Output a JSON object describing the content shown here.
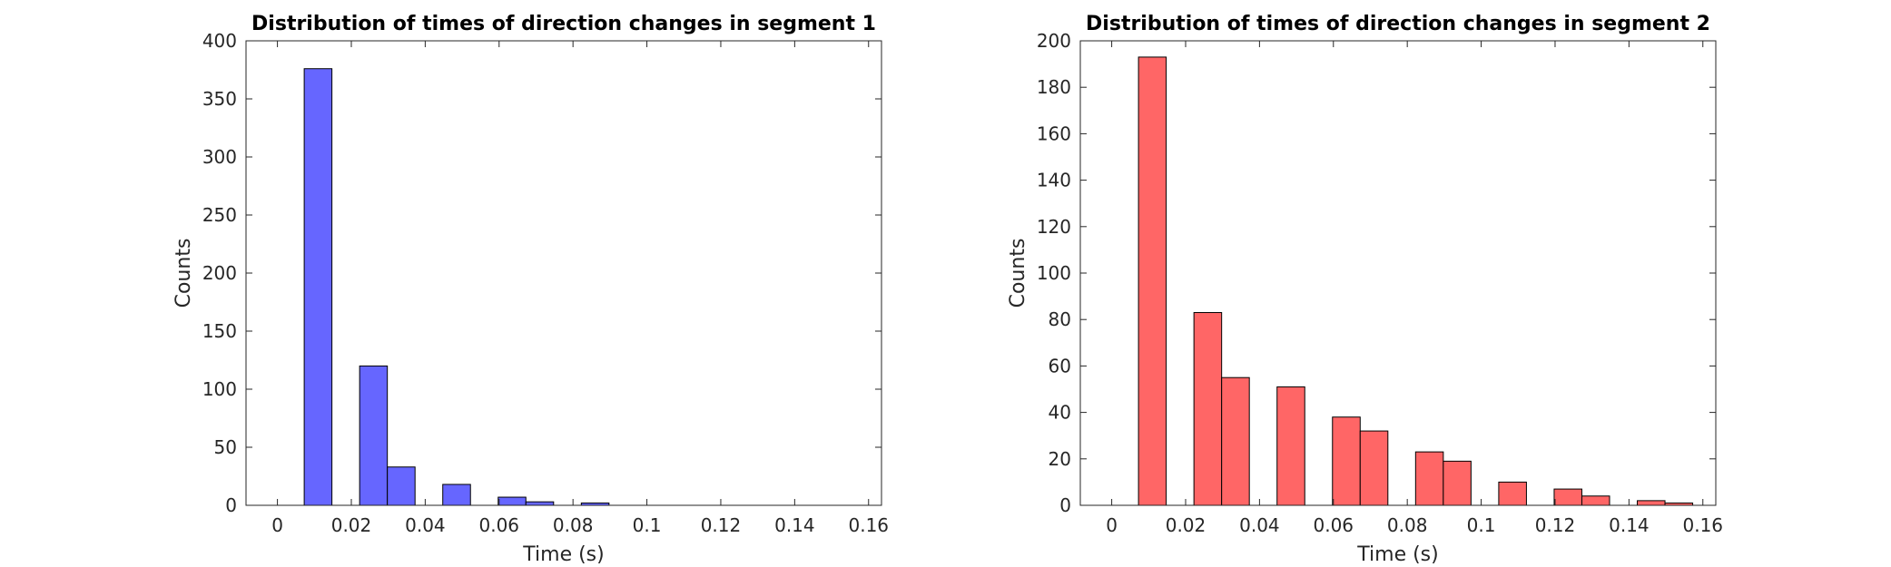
{
  "chart_data": [
    {
      "type": "bar",
      "title": "Distribution of times of direction changes in segment 1",
      "xlabel": "Time (s)",
      "ylabel": "Counts",
      "xlim": [
        -0.0085,
        0.1635
      ],
      "ylim": [
        0,
        400
      ],
      "xticks": [
        0,
        0.02,
        0.04,
        0.06,
        0.08,
        0.1,
        0.12,
        0.14,
        0.16
      ],
      "xtick_labels": [
        "0",
        "0.02",
        "0.04",
        "0.06",
        "0.08",
        "0.1",
        "0.12",
        "0.14",
        "0.16"
      ],
      "yticks": [
        0,
        50,
        100,
        150,
        200,
        250,
        300,
        350,
        400
      ],
      "ytick_labels": [
        "0",
        "50",
        "100",
        "150",
        "200",
        "250",
        "300",
        "350",
        "400"
      ],
      "bin_width": 0.0075,
      "bars": [
        {
          "x": 0.011,
          "value": 376
        },
        {
          "x": 0.026,
          "value": 120
        },
        {
          "x": 0.0335,
          "value": 33
        },
        {
          "x": 0.0485,
          "value": 18
        },
        {
          "x": 0.0635,
          "value": 7
        },
        {
          "x": 0.071,
          "value": 3
        },
        {
          "x": 0.086,
          "value": 2
        }
      ],
      "color": "#6666ff",
      "grid": false
    },
    {
      "type": "bar",
      "title": "Distribution of times of direction changes in segment 2",
      "xlabel": "Time (s)",
      "ylabel": "Counts",
      "xlim": [
        -0.0085,
        0.1635
      ],
      "ylim": [
        0,
        200
      ],
      "xticks": [
        0,
        0.02,
        0.04,
        0.06,
        0.08,
        0.1,
        0.12,
        0.14,
        0.16
      ],
      "xtick_labels": [
        "0",
        "0.02",
        "0.04",
        "0.06",
        "0.08",
        "0.1",
        "0.12",
        "0.14",
        "0.16"
      ],
      "yticks": [
        0,
        20,
        40,
        60,
        80,
        100,
        120,
        140,
        160,
        180,
        200
      ],
      "ytick_labels": [
        "0",
        "20",
        "40",
        "60",
        "80",
        "100",
        "120",
        "140",
        "160",
        "180",
        "200"
      ],
      "bin_width": 0.0075,
      "bars": [
        {
          "x": 0.011,
          "value": 193
        },
        {
          "x": 0.026,
          "value": 83
        },
        {
          "x": 0.0335,
          "value": 55
        },
        {
          "x": 0.0485,
          "value": 51
        },
        {
          "x": 0.0635,
          "value": 38
        },
        {
          "x": 0.071,
          "value": 32
        },
        {
          "x": 0.086,
          "value": 23
        },
        {
          "x": 0.0935,
          "value": 19
        },
        {
          "x": 0.1085,
          "value": 10
        },
        {
          "x": 0.1235,
          "value": 7
        },
        {
          "x": 0.131,
          "value": 4
        },
        {
          "x": 0.146,
          "value": 2
        },
        {
          "x": 0.1535,
          "value": 1
        }
      ],
      "color": "#ff6666",
      "grid": false
    }
  ]
}
